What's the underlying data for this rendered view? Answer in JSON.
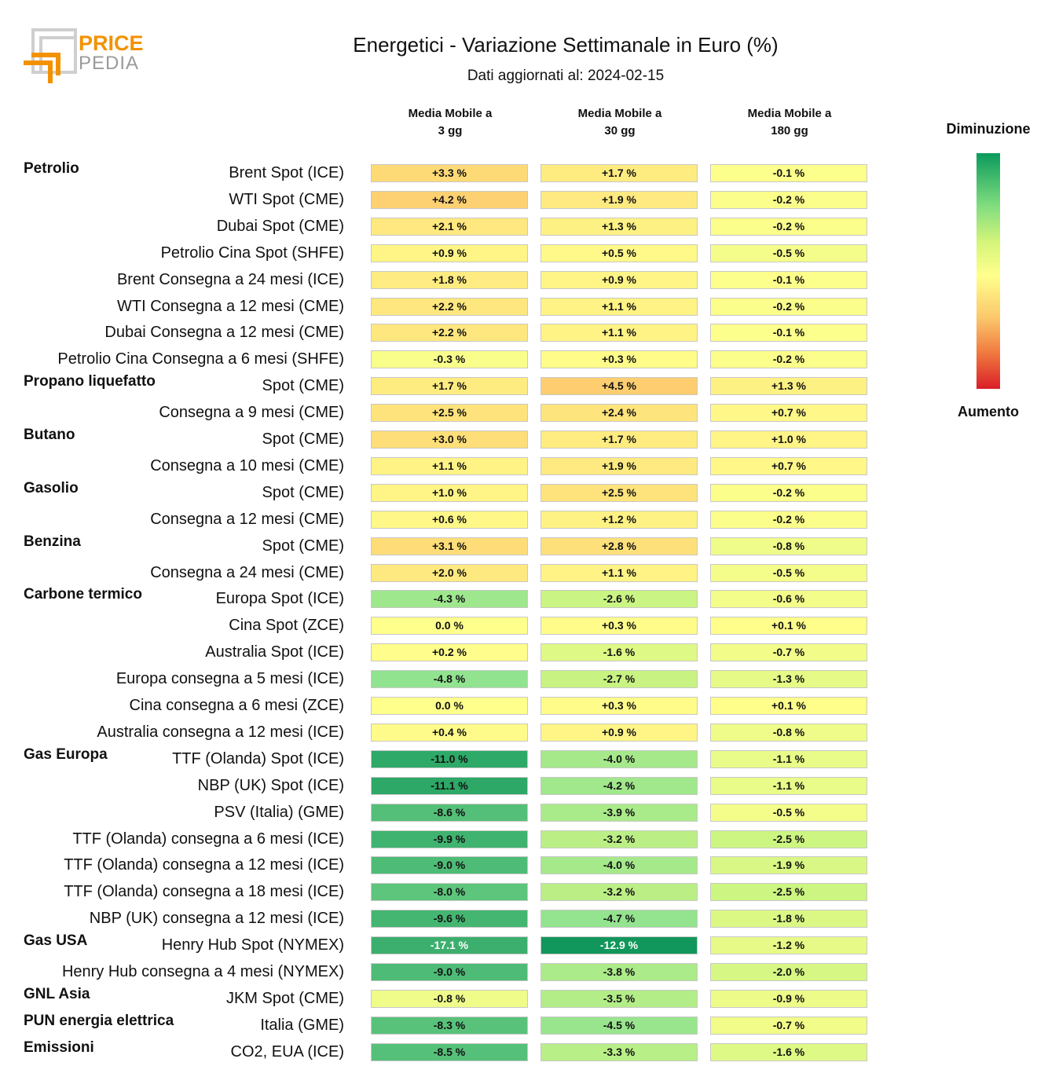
{
  "logo": {
    "text_top": "PRICE",
    "text_bottom": "PEDIA"
  },
  "title": "Energetici - Variazione Settimanale in Euro (%)",
  "subtitle": "Dati aggiornati al: 2024-02-15",
  "legend": {
    "top": "Diminuzione",
    "bottom": "Aumento"
  },
  "chart_data": {
    "type": "heatmap",
    "title": "Energetici - Variazione Settimanale in Euro (%)",
    "subtitle": "Dati aggiornati al: 2024-02-15",
    "columns": [
      [
        "Media Mobile a",
        "3 gg"
      ],
      [
        "Media Mobile a",
        "30 gg"
      ],
      [
        "Media Mobile a",
        "180 gg"
      ]
    ],
    "unit": "%",
    "rows": [
      {
        "group": "Petrolio",
        "label": "Brent Spot (ICE)",
        "values": [
          3.3,
          1.7,
          -0.1
        ]
      },
      {
        "group": "",
        "label": "WTI Spot (CME)",
        "values": [
          4.2,
          1.9,
          -0.2
        ]
      },
      {
        "group": "",
        "label": "Dubai Spot (CME)",
        "values": [
          2.1,
          1.3,
          -0.2
        ]
      },
      {
        "group": "",
        "label": "Petrolio Cina Spot (SHFE)",
        "values": [
          0.9,
          0.5,
          -0.5
        ]
      },
      {
        "group": "",
        "label": "Brent Consegna a 24 mesi (ICE)",
        "values": [
          1.8,
          0.9,
          -0.1
        ]
      },
      {
        "group": "",
        "label": "WTI Consegna a 12 mesi (CME)",
        "values": [
          2.2,
          1.1,
          -0.2
        ]
      },
      {
        "group": "",
        "label": "Dubai Consegna a 12 mesi (CME)",
        "values": [
          2.2,
          1.1,
          -0.1
        ]
      },
      {
        "group": "",
        "label": "Petrolio Cina Consegna a 6 mesi (SHFE)",
        "values": [
          -0.3,
          0.3,
          -0.2
        ]
      },
      {
        "group": "Propano liquefatto",
        "label": "Spot (CME)",
        "values": [
          1.7,
          4.5,
          1.3
        ]
      },
      {
        "group": "",
        "label": "Consegna a 9 mesi (CME)",
        "values": [
          2.5,
          2.4,
          0.7
        ]
      },
      {
        "group": "Butano",
        "label": "Spot (CME)",
        "values": [
          3.0,
          1.7,
          1.0
        ]
      },
      {
        "group": "",
        "label": "Consegna a 10 mesi (CME)",
        "values": [
          1.1,
          1.9,
          0.7
        ]
      },
      {
        "group": "Gasolio",
        "label": "Spot (CME)",
        "values": [
          1.0,
          2.5,
          -0.2
        ]
      },
      {
        "group": "",
        "label": "Consegna a 12 mesi (CME)",
        "values": [
          0.6,
          1.2,
          -0.2
        ]
      },
      {
        "group": "Benzina",
        "label": "Spot (CME)",
        "values": [
          3.1,
          2.8,
          -0.8
        ]
      },
      {
        "group": "",
        "label": "Consegna a 24 mesi (CME)",
        "values": [
          2.0,
          1.1,
          -0.5
        ]
      },
      {
        "group": "Carbone termico",
        "label": "Europa Spot (ICE)",
        "values": [
          -4.3,
          -2.6,
          -0.6
        ]
      },
      {
        "group": "",
        "label": "Cina Spot (ZCE)",
        "values": [
          0.0,
          0.3,
          0.1
        ]
      },
      {
        "group": "",
        "label": "Australia Spot (ICE)",
        "values": [
          0.2,
          -1.6,
          -0.7
        ]
      },
      {
        "group": "",
        "label": "Europa consegna a 5 mesi (ICE)",
        "values": [
          -4.8,
          -2.7,
          -1.3
        ]
      },
      {
        "group": "",
        "label": "Cina consegna a 6 mesi (ZCE)",
        "values": [
          0.0,
          0.3,
          0.1
        ]
      },
      {
        "group": "",
        "label": "Australia consegna a 12 mesi (ICE)",
        "values": [
          0.4,
          0.9,
          -0.8
        ]
      },
      {
        "group": "Gas Europa",
        "label": "TTF (Olanda) Spot (ICE)",
        "values": [
          -11.0,
          -4.0,
          -1.1
        ]
      },
      {
        "group": "",
        "label": "NBP (UK) Spot (ICE)",
        "values": [
          -11.1,
          -4.2,
          -1.1
        ]
      },
      {
        "group": "",
        "label": "PSV (Italia) (GME)",
        "values": [
          -8.6,
          -3.9,
          -0.5
        ]
      },
      {
        "group": "",
        "label": "TTF (Olanda) consegna a 6 mesi (ICE)",
        "values": [
          -9.9,
          -3.2,
          -2.5
        ]
      },
      {
        "group": "",
        "label": "TTF (Olanda) consegna a 12 mesi (ICE)",
        "values": [
          -9.0,
          -4.0,
          -1.9
        ]
      },
      {
        "group": "",
        "label": "TTF (Olanda) consegna a 18 mesi (ICE)",
        "values": [
          -8.0,
          -3.2,
          -2.5
        ]
      },
      {
        "group": "",
        "label": "NBP (UK) consegna a 12 mesi (ICE)",
        "values": [
          -9.6,
          -4.7,
          -1.8
        ]
      },
      {
        "group": "Gas USA",
        "label": "Henry Hub Spot (NYMEX)",
        "values": [
          -17.1,
          -12.9,
          -1.2
        ]
      },
      {
        "group": "",
        "label": "Henry Hub consegna a 4 mesi (NYMEX)",
        "values": [
          -9.0,
          -3.8,
          -2.0
        ]
      },
      {
        "group": "GNL Asia",
        "label": "JKM Spot (CME)",
        "values": [
          -0.8,
          -3.5,
          -0.9
        ]
      },
      {
        "group": "PUN energia elettrica",
        "label": "Italia (GME)",
        "values": [
          -8.3,
          -4.5,
          -0.7
        ]
      },
      {
        "group": "Emissioni",
        "label": "CO2, EUA (ICE)",
        "values": [
          -8.5,
          -3.3,
          -1.6
        ]
      }
    ]
  }
}
